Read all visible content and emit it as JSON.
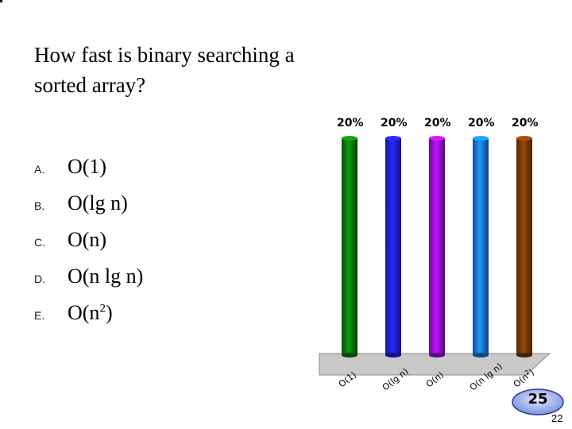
{
  "question": {
    "line1": "How fast is binary searching a",
    "line2": "sorted array?"
  },
  "options": [
    {
      "letter": "A.",
      "text": "O(1)"
    },
    {
      "letter": "B.",
      "text": "O(lg n)"
    },
    {
      "letter": "C.",
      "text": "O(n)"
    },
    {
      "letter": "D.",
      "text": "O(n lg n)"
    },
    {
      "letter": "E.",
      "text_base": "O(n",
      "text_sup": "2",
      "text_end": ")"
    }
  ],
  "chart_data": {
    "type": "bar",
    "categories": [
      "O(1)",
      "O(lg n)",
      "O(n)",
      "O(n lg n)",
      "O(n2)"
    ],
    "values": [
      20,
      20,
      20,
      20,
      20
    ],
    "value_labels": [
      "20%",
      "20%",
      "20%",
      "20%",
      "20%"
    ],
    "colors": [
      "#0a7a0a",
      "#2020e0",
      "#9a10e8",
      "#1a78e0",
      "#7a3a08"
    ],
    "ylim": [
      0,
      20
    ],
    "grid": false,
    "legend": "none"
  },
  "timer": {
    "value": "25"
  },
  "slide_number": "22"
}
